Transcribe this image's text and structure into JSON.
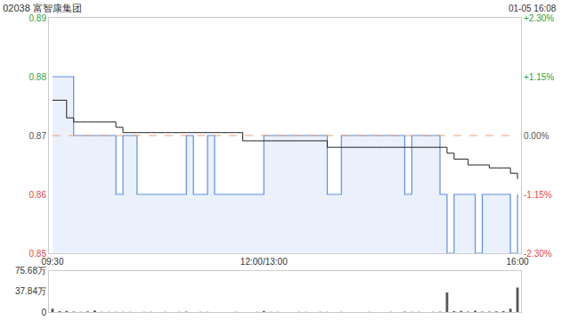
{
  "chart_data": [
    {
      "type": "line",
      "title": "02038 富智康集团",
      "subtitle": "01-05 16:08",
      "categories": [
        "09:30",
        null,
        null,
        null,
        null,
        null,
        null,
        null,
        null,
        null,
        null,
        null,
        null,
        null,
        null,
        null,
        null,
        null,
        null,
        null,
        null,
        null,
        null,
        null,
        null,
        null,
        null,
        null,
        null,
        null,
        "12:00/13:00",
        null,
        null,
        null,
        null,
        null,
        null,
        null,
        null,
        null,
        null,
        null,
        null,
        null,
        null,
        null,
        null,
        null,
        null,
        null,
        null,
        null,
        null,
        null,
        null,
        null,
        null,
        null,
        null,
        null,
        null,
        null,
        null,
        null,
        null,
        null,
        "16:00"
      ],
      "series": [
        {
          "type": "area",
          "color": "#5b8ee6",
          "values": [
            0.88,
            0.88,
            0.88,
            0.87,
            0.87,
            0.87,
            0.87,
            0.87,
            0.87,
            0.86,
            0.87,
            0.87,
            0.86,
            0.86,
            0.86,
            0.86,
            0.86,
            0.86,
            0.86,
            0.87,
            0.86,
            0.86,
            0.87,
            0.86,
            0.86,
            0.86,
            0.86,
            0.86,
            0.86,
            0.86,
            0.87,
            0.87,
            0.87,
            0.87,
            0.87,
            0.87,
            0.87,
            0.87,
            0.87,
            0.86,
            0.86,
            0.87,
            0.87,
            0.87,
            0.87,
            0.87,
            0.87,
            0.87,
            0.87,
            0.87,
            0.86,
            0.87,
            0.87,
            0.87,
            0.87,
            0.86,
            0.85,
            0.86,
            0.86,
            0.86,
            0.85,
            0.86,
            0.86,
            0.86,
            0.86,
            0.85,
            0.86
          ]
        },
        {
          "type": "line",
          "color": "#222222",
          "values": [
            0.876,
            0.876,
            0.873,
            0.8723,
            0.8723,
            0.8723,
            0.8723,
            0.8723,
            0.8723,
            0.8714,
            0.8705,
            0.8705,
            0.8705,
            0.8705,
            0.8705,
            0.8705,
            0.8705,
            0.8705,
            0.8705,
            0.8705,
            0.8705,
            0.8705,
            0.8705,
            0.8705,
            0.8705,
            0.8705,
            0.8705,
            0.8691,
            0.8691,
            0.8691,
            0.8691,
            0.8691,
            0.8691,
            0.8691,
            0.8691,
            0.8691,
            0.8691,
            0.8691,
            0.8691,
            0.868,
            0.868,
            0.868,
            0.868,
            0.868,
            0.868,
            0.868,
            0.868,
            0.868,
            0.868,
            0.868,
            0.868,
            0.868,
            0.868,
            0.868,
            0.868,
            0.868,
            0.867,
            0.866,
            0.866,
            0.865,
            0.865,
            0.865,
            0.8645,
            0.8645,
            0.8645,
            0.8636,
            0.8626
          ]
        },
        {
          "type": "line",
          "color": "#f0a070",
          "line_style": "dashed",
          "values": [
            0.87,
            0.87,
            0.87,
            0.87,
            0.87,
            0.87,
            0.87,
            0.87,
            0.87,
            0.87,
            0.87,
            0.87,
            0.87,
            0.87,
            0.87,
            0.87,
            0.87,
            0.87,
            0.87,
            0.87,
            0.87,
            0.87,
            0.87,
            0.87,
            0.87,
            0.87,
            0.87,
            0.87,
            0.87,
            0.87,
            0.87,
            0.87,
            0.87,
            0.87,
            0.87,
            0.87,
            0.87,
            0.87,
            0.87,
            0.87,
            0.87,
            0.87,
            0.87,
            0.87,
            0.87,
            0.87,
            0.87,
            0.87,
            0.87,
            0.87,
            0.87,
            0.87,
            0.87,
            0.87,
            0.87,
            0.87,
            0.87,
            0.87,
            0.87,
            0.87,
            0.87,
            0.87,
            0.87,
            0.87,
            0.87,
            0.87,
            0.87
          ]
        }
      ],
      "ylim": [
        0.85,
        0.89
      ],
      "yticks": [
        0.85,
        0.86,
        0.87,
        0.88,
        0.89
      ],
      "y2lim": [
        -2.3,
        2.3
      ],
      "y2ticks": [
        {
          "value": -2.3,
          "label": "-2.30%"
        },
        {
          "value": -1.15,
          "label": "-1.15%"
        },
        {
          "value": 0,
          "label": "0.00%"
        },
        {
          "value": 1.15,
          "label": "+1.15%"
        },
        {
          "value": 2.3,
          "label": "+2.30%"
        }
      ],
      "grid": false
    },
    {
      "type": "bar",
      "categories": [
        "09:30",
        null,
        null,
        null,
        null,
        null,
        null,
        null,
        null,
        null,
        null,
        null,
        null,
        null,
        null,
        null,
        null,
        null,
        null,
        null,
        null,
        null,
        null,
        null,
        null,
        null,
        null,
        null,
        null,
        null,
        "12:00/13:00",
        null,
        null,
        null,
        null,
        null,
        null,
        null,
        null,
        null,
        null,
        null,
        null,
        null,
        null,
        null,
        null,
        null,
        null,
        null,
        null,
        null,
        null,
        null,
        null,
        null,
        null,
        null,
        null,
        null,
        null,
        null,
        null,
        null,
        null,
        null,
        "16:00"
      ],
      "values": [
        60000,
        15000,
        20000,
        8000,
        5000,
        12000,
        30000,
        5000,
        3000,
        6000,
        4000,
        3000,
        2000,
        5000,
        3000,
        2000,
        4000,
        2000,
        3000,
        10000,
        2000,
        3000,
        4000,
        2000,
        2000,
        1000,
        3000,
        2000,
        2000,
        3000,
        20000,
        5000,
        3000,
        2000,
        2000,
        4000,
        3000,
        2000,
        3000,
        5000,
        2000,
        3000,
        2000,
        1000,
        2000,
        3000,
        2000,
        2000,
        3000,
        2000,
        8000,
        4000,
        3000,
        2000,
        5000,
        10000,
        360000,
        15000,
        20000,
        10000,
        25000,
        8000,
        10000,
        12000,
        15000,
        60000,
        450000
      ],
      "color": "#555555",
      "ylim": [
        0,
        756800
      ],
      "yticks": [
        0,
        {
          "value": 378400,
          "label": "37.84万"
        },
        {
          "value": 756800,
          "label": "75.68万"
        }
      ],
      "tick_labels": "y",
      "grid": false
    }
  ]
}
